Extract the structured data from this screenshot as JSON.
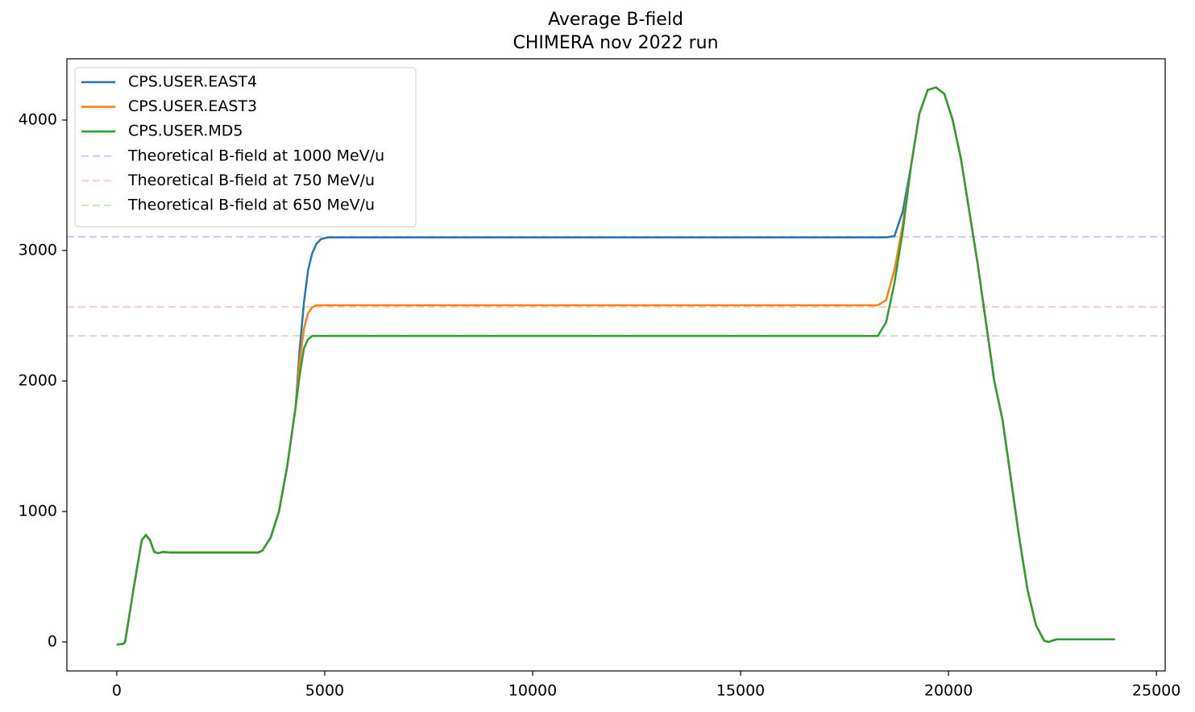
{
  "chart_data": {
    "type": "line",
    "title": "Average B-field",
    "subtitle": "CHIMERA nov 2022 run",
    "x": [
      0,
      150,
      200,
      400,
      600,
      700,
      800,
      900,
      1000,
      1100,
      1300,
      2000,
      3000,
      3400,
      3500,
      3700,
      3900,
      4100,
      4300,
      4400,
      4500,
      4600,
      4700,
      4800,
      4900,
      5000,
      5100,
      5300,
      10000,
      15000,
      18300,
      18500,
      18700,
      18900,
      19100,
      19300,
      19500,
      19700,
      19900,
      20100,
      20300,
      20500,
      20700,
      20900,
      21100,
      21300,
      21500,
      21700,
      21900,
      22100,
      22300,
      22400,
      22600,
      24000
    ],
    "series": [
      {
        "name": "CPS.USER.EAST4",
        "color": "#1f77b4",
        "values": [
          -20,
          -15,
          0,
          400,
          780,
          820,
          780,
          690,
          680,
          690,
          685,
          685,
          685,
          685,
          700,
          800,
          1000,
          1350,
          1800,
          2250,
          2600,
          2850,
          2980,
          3050,
          3085,
          3095,
          3100,
          3100,
          3100,
          3100,
          3100,
          3100,
          3110,
          3300,
          3650,
          4050,
          4230,
          4250,
          4200,
          4000,
          3700,
          3300,
          2900,
          2450,
          2000,
          1700,
          1250,
          800,
          400,
          130,
          10,
          0,
          20,
          20
        ]
      },
      {
        "name": "CPS.USER.EAST3",
        "color": "#ff7f0e",
        "values": [
          -20,
          -15,
          0,
          400,
          780,
          820,
          780,
          690,
          680,
          690,
          685,
          685,
          685,
          685,
          700,
          800,
          1000,
          1350,
          1800,
          2150,
          2400,
          2520,
          2565,
          2580,
          2580,
          2580,
          2580,
          2580,
          2580,
          2580,
          2580,
          2620,
          2850,
          3200,
          3650,
          4050,
          4230,
          4250,
          4200,
          4000,
          3700,
          3300,
          2900,
          2450,
          2000,
          1700,
          1250,
          800,
          400,
          130,
          10,
          0,
          20,
          20
        ]
      },
      {
        "name": "CPS.USER.MD5",
        "color": "#2ca02c",
        "values": [
          -20,
          -15,
          0,
          400,
          780,
          820,
          780,
          690,
          680,
          690,
          685,
          685,
          685,
          685,
          700,
          800,
          1000,
          1350,
          1800,
          2050,
          2250,
          2320,
          2345,
          2345,
          2345,
          2345,
          2345,
          2345,
          2345,
          2345,
          2345,
          2450,
          2750,
          3150,
          3650,
          4050,
          4230,
          4250,
          4200,
          4000,
          3700,
          3300,
          2900,
          2450,
          2000,
          1700,
          1250,
          800,
          400,
          130,
          10,
          0,
          20,
          20
        ]
      }
    ],
    "hlines": [
      {
        "name": "Theoretical B-field at 1000 MeV/u",
        "color": "#0000ff",
        "value": 3105
      },
      {
        "name": "Theoretical B-field at 750 MeV/u",
        "color": "#ff0000",
        "value": 2568
      },
      {
        "name": "Theoretical B-field at 650 MeV/u",
        "color": "#008000",
        "value": 2346
      }
    ],
    "xlim": [
      -1200,
      25210
    ],
    "ylim": [
      -222,
      4469
    ],
    "xticks": [
      0,
      5000,
      10000,
      15000,
      20000,
      25000
    ],
    "yticks": [
      0,
      1000,
      2000,
      3000,
      4000
    ],
    "legend": "upper left"
  }
}
